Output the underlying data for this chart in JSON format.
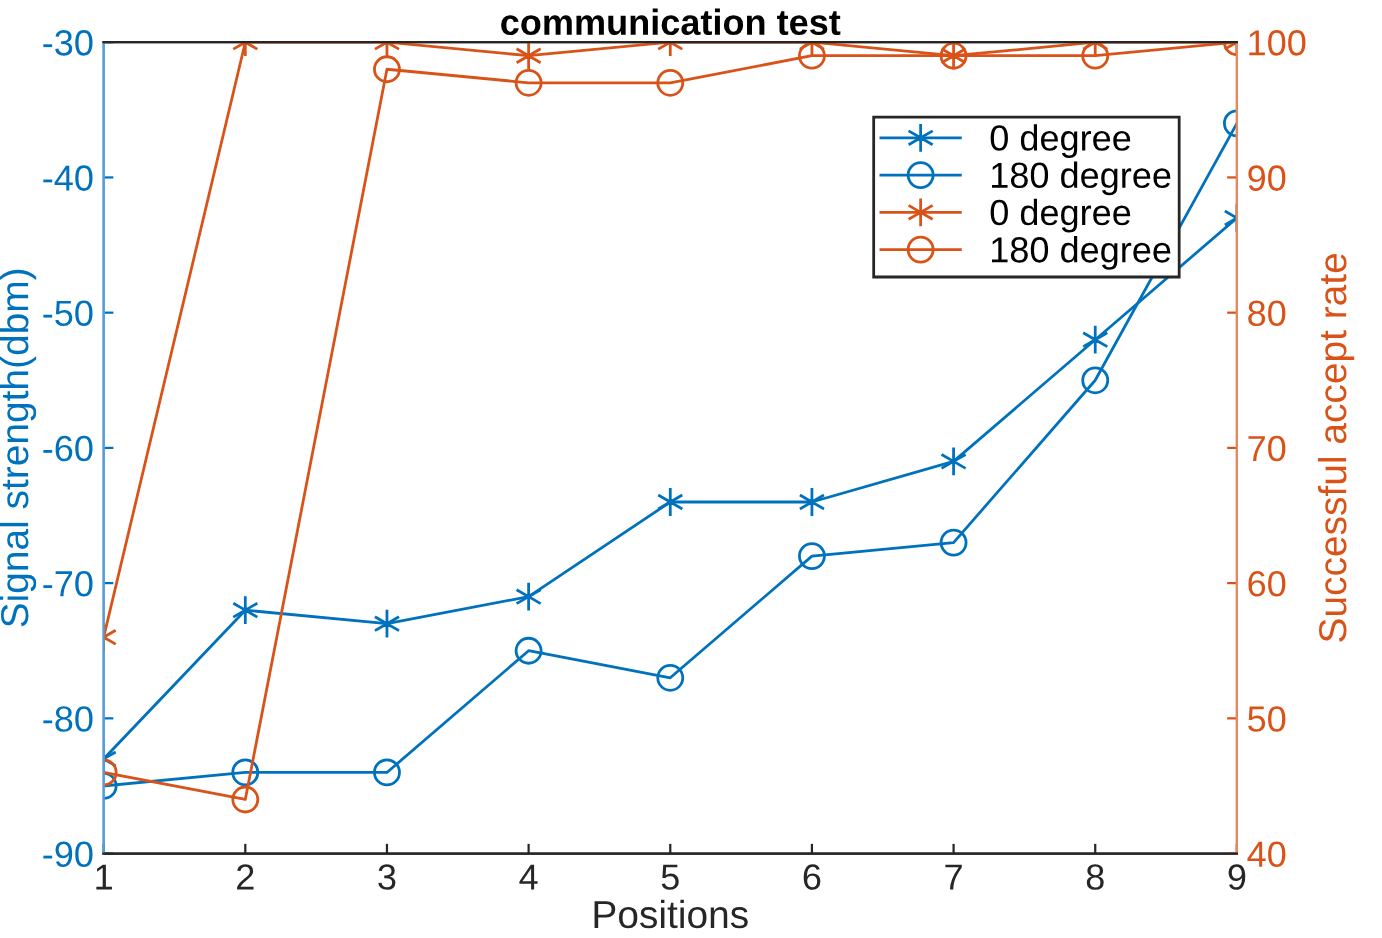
{
  "chart_data": {
    "type": "line",
    "title": "communication test",
    "xlabel": "Positions",
    "ylabel": "Signal strength(dbm)",
    "y2label": "Successful accept rate",
    "x": [
      1,
      2,
      3,
      4,
      5,
      6,
      7,
      8,
      9
    ],
    "xlim": [
      1,
      9
    ],
    "xticks": [
      1,
      2,
      3,
      4,
      5,
      6,
      7,
      8,
      9
    ],
    "ylim": [
      -90,
      -30
    ],
    "yticks": [
      -90,
      -80,
      -70,
      -60,
      -50,
      -40,
      -30
    ],
    "y2lim": [
      40,
      100
    ],
    "y2ticks": [
      40,
      50,
      60,
      70,
      80,
      90,
      100
    ],
    "grid": false,
    "legend": "top right",
    "line_style": "solid",
    "series": [
      {
        "name": "0 degree",
        "color": "#0072bd",
        "marker": "cross",
        "values": [
          -83,
          -72,
          -73,
          -71,
          -64,
          -64,
          -61,
          -52,
          -43
        ]
      },
      {
        "name": "180 degree",
        "color": "#0072bd",
        "marker": "circle",
        "values": [
          -85,
          -84,
          -84,
          -75,
          -77,
          -68,
          -67,
          -55,
          -36
        ]
      },
      {
        "name": "0 degree",
        "color": "#d95319",
        "marker": "cross",
        "axis": "y2",
        "values": [
          56,
          100,
          100,
          99,
          100,
          100,
          99,
          100,
          100
        ]
      },
      {
        "name": "180 degree",
        "color": "#d95319",
        "marker": "circle",
        "axis": "y2",
        "values": [
          46,
          44,
          98,
          97,
          97,
          99,
          99,
          99,
          100
        ]
      }
    ]
  }
}
